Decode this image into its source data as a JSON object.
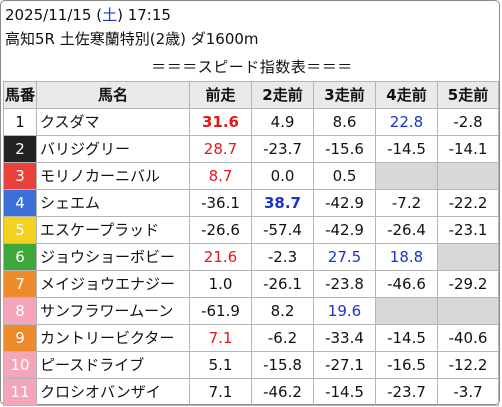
{
  "header": {
    "date_prefix": "2025/11/15 (",
    "weekday": "土",
    "date_suffix": ") 17:15",
    "race": "高知5R 土佐寒蘭特別(2歳) ダ1600m"
  },
  "index_title": "＝＝＝スピード指数表＝＝＝",
  "columns": [
    "馬番",
    "馬名",
    "前走",
    "2走前",
    "3走前",
    "4走前",
    "5走前"
  ],
  "colors": {
    "frame1": "#ffffff",
    "frame2": "#222222",
    "frame3": "#e8403a",
    "frame4": "#3c6fd8",
    "frame5": "#f2d21c",
    "frame6": "#3fa63b",
    "frame7": "#ef8a2a",
    "frame8": "#f4a6b8",
    "highlight_red": "#dd1a1a",
    "highlight_blue": "#1a33cc",
    "empty_cell": "#d8d8d8"
  },
  "rows": [
    {
      "num": "1",
      "name": "クスダマ",
      "v": [
        "31.6",
        "4.9",
        "8.6",
        "22.8",
        "-2.8"
      ],
      "s": [
        "bold-red",
        "",
        "",
        "blue",
        ""
      ]
    },
    {
      "num": "2",
      "name": "バリジグリー",
      "v": [
        "28.7",
        "-23.7",
        "-15.6",
        "-14.5",
        "-14.1"
      ],
      "s": [
        "red",
        "",
        "",
        "",
        ""
      ]
    },
    {
      "num": "3",
      "name": "モリノカーニバル",
      "v": [
        "8.7",
        "0.0",
        "0.5",
        "",
        ""
      ],
      "s": [
        "red",
        "",
        "",
        "empty",
        "empty"
      ]
    },
    {
      "num": "4",
      "name": "シェエム",
      "v": [
        "-36.1",
        "38.7",
        "-42.9",
        "-7.2",
        "-22.2"
      ],
      "s": [
        "",
        "bold-blue",
        "",
        "",
        ""
      ]
    },
    {
      "num": "5",
      "name": "エスケープラッド",
      "v": [
        "-26.6",
        "-57.4",
        "-42.9",
        "-26.4",
        "-23.1"
      ],
      "s": [
        "",
        "",
        "",
        "",
        ""
      ]
    },
    {
      "num": "6",
      "name": "ジョウショーボビー",
      "v": [
        "21.6",
        "-2.3",
        "27.5",
        "18.8",
        ""
      ],
      "s": [
        "red",
        "",
        "blue",
        "blue",
        "empty"
      ]
    },
    {
      "num": "7",
      "name": "メイジョウエナジー",
      "v": [
        "1.0",
        "-26.1",
        "-23.8",
        "-46.6",
        "-29.2"
      ],
      "s": [
        "",
        "",
        "",
        "",
        ""
      ]
    },
    {
      "num": "8",
      "name": "サンフラワームーン",
      "v": [
        "-61.9",
        "8.2",
        "19.6",
        "",
        ""
      ],
      "s": [
        "",
        "",
        "blue",
        "empty",
        "empty"
      ]
    },
    {
      "num": "9",
      "name": "カントリービクター",
      "v": [
        "7.1",
        "-6.2",
        "-33.4",
        "-14.5",
        "-40.6"
      ],
      "s": [
        "red",
        "",
        "",
        "",
        ""
      ]
    },
    {
      "num": "10",
      "name": "ピースドライブ",
      "v": [
        "5.1",
        "-15.8",
        "-27.1",
        "-16.5",
        "-12.2"
      ],
      "s": [
        "",
        "",
        "",
        "",
        ""
      ]
    },
    {
      "num": "11",
      "name": "クロシオバンザイ",
      "v": [
        "7.1",
        "-46.2",
        "-14.5",
        "-23.7",
        "-3.7"
      ],
      "s": [
        "",
        "",
        "",
        "",
        ""
      ]
    }
  ]
}
